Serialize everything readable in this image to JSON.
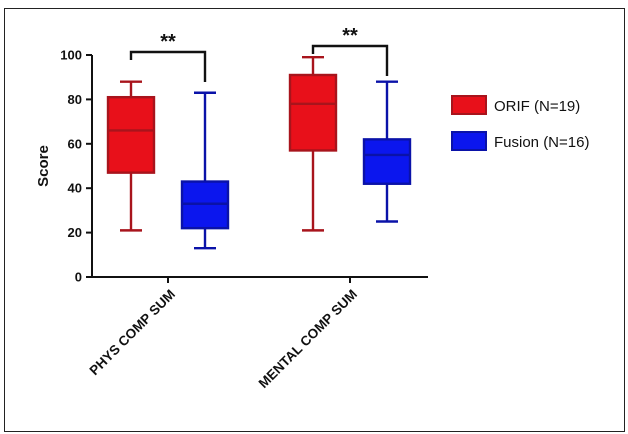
{
  "chart_data": {
    "type": "box",
    "title": "",
    "ylabel": "Score",
    "ylim": [
      0,
      100
    ],
    "yticks": [
      0,
      20,
      40,
      60,
      80,
      100
    ],
    "categories": [
      "PHYS COMP SUM",
      "MENTAL COMP SUM"
    ],
    "series": [
      {
        "name": "ORIF (N=19)",
        "color": "#e8101a",
        "stroke": "#a8141c",
        "boxes": [
          {
            "min": 21,
            "q1": 47,
            "median": 66,
            "q3": 81,
            "max": 88
          },
          {
            "min": 21,
            "q1": 57,
            "median": 78,
            "q3": 91,
            "max": 99
          }
        ]
      },
      {
        "name": "Fusion (N=16)",
        "color": "#0b16ee",
        "stroke": "#0a12a8",
        "boxes": [
          {
            "min": 13,
            "q1": 22,
            "median": 33,
            "q3": 43,
            "max": 83
          },
          {
            "min": 25,
            "q1": 42,
            "median": 55,
            "q3": 62,
            "max": 88
          }
        ]
      }
    ],
    "annotations": [
      {
        "category": "PHYS COMP SUM",
        "text": "**"
      },
      {
        "category": "MENTAL COMP SUM",
        "text": "**"
      }
    ],
    "legend_position": "right"
  }
}
